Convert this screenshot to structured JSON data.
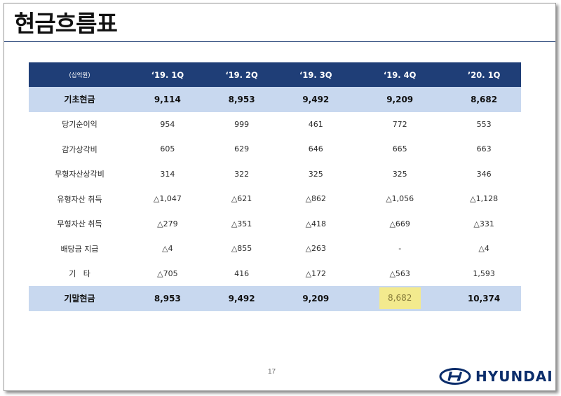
{
  "title": "현금흐름표",
  "page_number": "17",
  "logo_text": "HYUNDAI",
  "colors": {
    "header_bg": "#1f3e77",
    "highlight_row_bg": "#c8d8ef",
    "highlight_cell_bg": "#f3ea8e",
    "brand": "#0b2d6b"
  },
  "table": {
    "unit": "(십억원)",
    "columns": [
      "‘19. 1Q",
      "‘19. 2Q",
      "‘19. 3Q",
      "‘19. 4Q",
      "’20. 1Q"
    ],
    "rows": [
      {
        "label": "기초현금",
        "values": [
          "9,114",
          "8,953",
          "9,492",
          "9,209",
          "8,682"
        ]
      },
      {
        "label": "당기순이익",
        "values": [
          "954",
          "999",
          "461",
          "772",
          "553"
        ]
      },
      {
        "label": "감가상각비",
        "values": [
          "605",
          "629",
          "646",
          "665",
          "663"
        ]
      },
      {
        "label": "무형자산상각비",
        "values": [
          "314",
          "322",
          "325",
          "325",
          "346"
        ]
      },
      {
        "label": "유형자산 취득",
        "values": [
          "△1,047",
          "△621",
          "△862",
          "△1,056",
          "△1,128"
        ]
      },
      {
        "label": "무형자산 취득",
        "values": [
          "△279",
          "△351",
          "△418",
          "△669",
          "△331"
        ]
      },
      {
        "label": "배당금 지급",
        "values": [
          "△4",
          "△855",
          "△263",
          "-",
          "△4"
        ]
      },
      {
        "label": "기   타",
        "values": [
          "△705",
          "416",
          "△172",
          "△563",
          "1,593"
        ]
      },
      {
        "label": "기말현금",
        "values": [
          "8,953",
          "9,492",
          "9,209",
          "8,682",
          "10,374"
        ]
      }
    ]
  }
}
